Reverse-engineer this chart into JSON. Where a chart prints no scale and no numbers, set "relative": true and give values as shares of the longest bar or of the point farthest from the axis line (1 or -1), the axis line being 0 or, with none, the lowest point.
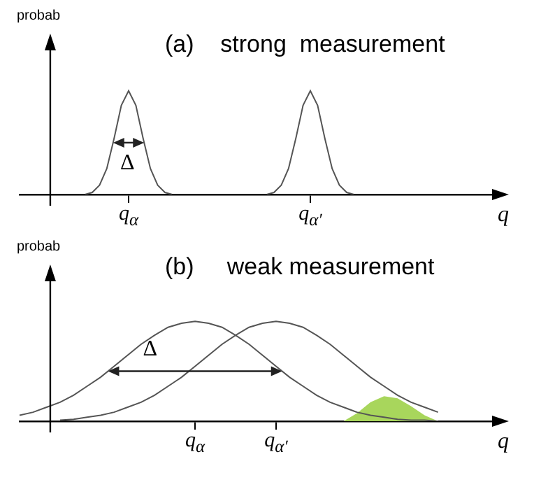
{
  "chart_data": [
    {
      "type": "line",
      "relative": true,
      "title": "(a)    strong  measurement",
      "ylabel": "probab",
      "xlabel": "q",
      "annotations": [
        "Δ"
      ],
      "categories": [
        null,
        null,
        null,
        null,
        null,
        null,
        null,
        null,
        null,
        null,
        null,
        null,
        null,
        null,
        null,
        "q$_{α}$",
        null,
        null,
        null,
        null,
        null,
        null,
        null,
        null,
        null,
        null,
        null,
        null,
        null,
        null,
        null,
        null,
        null,
        null,
        null,
        null,
        null,
        null,
        null,
        null,
        "q$_{α′}$",
        null,
        null,
        null,
        null,
        null,
        null,
        null,
        null,
        null,
        null,
        null,
        null,
        null,
        null,
        null,
        null,
        null,
        null,
        null,
        null,
        null,
        null,
        null,
        null,
        null
      ],
      "series": [
        {
          "color": "#555555",
          "values": [
            null,
            null,
            null,
            null,
            null,
            null,
            null,
            null,
            null,
            0,
            0.02,
            0.09,
            0.25,
            0.54,
            0.86,
            1,
            0.86,
            0.54,
            0.25,
            0.09,
            0.02,
            0,
            null,
            null,
            null,
            null,
            null,
            null,
            null,
            null,
            null,
            null,
            null,
            null,
            null,
            null,
            null,
            null,
            null,
            null,
            null,
            null,
            null,
            null,
            null,
            null,
            null,
            null,
            null,
            null,
            null,
            null,
            null,
            null,
            null,
            null,
            null,
            null,
            null,
            null,
            null,
            null,
            null,
            null,
            null,
            null
          ]
        },
        {
          "color": "#555555",
          "values": [
            null,
            null,
            null,
            null,
            null,
            null,
            null,
            null,
            null,
            null,
            null,
            null,
            null,
            null,
            null,
            null,
            null,
            null,
            null,
            null,
            null,
            null,
            null,
            null,
            null,
            null,
            null,
            null,
            null,
            null,
            null,
            null,
            null,
            null,
            0,
            0.02,
            0.09,
            0.25,
            0.54,
            0.86,
            1,
            0.86,
            0.54,
            0.25,
            0.09,
            0.02,
            0,
            null,
            null,
            null,
            null,
            null,
            null,
            null,
            null,
            null,
            null,
            null,
            null,
            null,
            null,
            null,
            null,
            null,
            null,
            null
          ]
        }
      ]
    },
    {
      "type": "line",
      "relative": true,
      "title": "(b)     weak measurement",
      "ylabel": "probab",
      "xlabel": "q",
      "annotations": [
        "Δ"
      ],
      "categories": [
        null,
        null,
        null,
        null,
        null,
        null,
        null,
        null,
        null,
        null,
        null,
        null,
        null,
        "q$_{α}$",
        null,
        null,
        null,
        null,
        null,
        "q$_{α′}$",
        null,
        null,
        null,
        null,
        null,
        null,
        null,
        null,
        null,
        null,
        null,
        null,
        null,
        null,
        null,
        null
      ],
      "series": [
        {
          "color": "#555555",
          "values": [
            0.06,
            0.09,
            0.14,
            0.19,
            0.26,
            0.35,
            0.44,
            0.55,
            0.66,
            0.77,
            0.86,
            0.94,
            0.98,
            1,
            0.98,
            0.94,
            0.86,
            0.77,
            0.66,
            0.55,
            0.44,
            0.35,
            0.26,
            0.19,
            0.14,
            0.09,
            0.06,
            0.04,
            0.02,
            0.01,
            0.01,
            0,
            null,
            null,
            null,
            null
          ]
        },
        {
          "color": "#555555",
          "values": [
            null,
            null,
            null,
            0.01,
            0.02,
            0.04,
            0.06,
            0.09,
            0.14,
            0.19,
            0.26,
            0.35,
            0.44,
            0.55,
            0.66,
            0.77,
            0.86,
            0.94,
            0.98,
            1,
            0.98,
            0.94,
            0.86,
            0.77,
            0.66,
            0.55,
            0.44,
            0.35,
            0.26,
            0.19,
            0.14,
            0.09,
            null,
            null,
            null,
            null
          ]
        },
        {
          "type": "area",
          "color": "#a8d65c",
          "values": [
            null,
            null,
            null,
            null,
            null,
            null,
            null,
            null,
            null,
            null,
            null,
            null,
            null,
            null,
            null,
            null,
            null,
            null,
            null,
            null,
            null,
            null,
            null,
            null,
            0,
            0.08,
            0.19,
            0.25,
            0.23,
            0.15,
            0.06,
            0,
            null,
            null,
            null,
            null
          ]
        }
      ]
    }
  ]
}
